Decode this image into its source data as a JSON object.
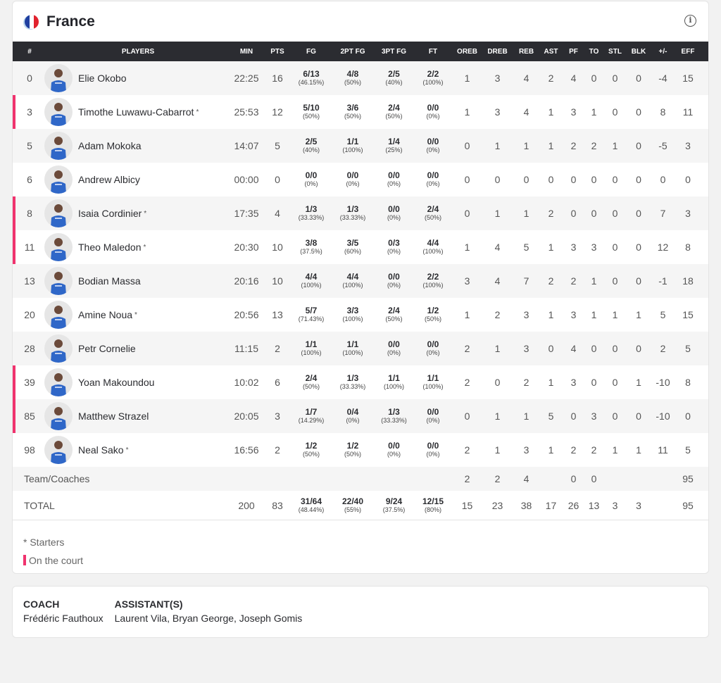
{
  "team": {
    "name": "France",
    "flag_colors": [
      "#1f3fa0",
      "#ffffff",
      "#e1222e"
    ]
  },
  "accent": "#f0336e",
  "columns": [
    "#",
    "PLAYERS",
    "MIN",
    "PTS",
    "FG",
    "2PT FG",
    "3PT FG",
    "FT",
    "OREB",
    "DREB",
    "REB",
    "AST",
    "PF",
    "TO",
    "STL",
    "BLK",
    "+/-",
    "EFF"
  ],
  "players": [
    {
      "num": "0",
      "name": "Elie Okobo",
      "starter": false,
      "on_court": false,
      "min": "22:25",
      "pts": "16",
      "fg": [
        "6/13",
        "(46.15%)"
      ],
      "fg2": [
        "4/8",
        "(50%)"
      ],
      "fg3": [
        "2/5",
        "(40%)"
      ],
      "ft": [
        "2/2",
        "(100%)"
      ],
      "oreb": "1",
      "dreb": "3",
      "reb": "4",
      "ast": "2",
      "pf": "4",
      "to": "0",
      "stl": "0",
      "blk": "0",
      "pm": "-4",
      "eff": "15"
    },
    {
      "num": "3",
      "name": "Timothe Luwawu-Cabarrot",
      "starter": true,
      "on_court": true,
      "min": "25:53",
      "pts": "12",
      "fg": [
        "5/10",
        "(50%)"
      ],
      "fg2": [
        "3/6",
        "(50%)"
      ],
      "fg3": [
        "2/4",
        "(50%)"
      ],
      "ft": [
        "0/0",
        "(0%)"
      ],
      "oreb": "1",
      "dreb": "3",
      "reb": "4",
      "ast": "1",
      "pf": "3",
      "to": "1",
      "stl": "0",
      "blk": "0",
      "pm": "8",
      "eff": "11"
    },
    {
      "num": "5",
      "name": "Adam Mokoka",
      "starter": false,
      "on_court": false,
      "min": "14:07",
      "pts": "5",
      "fg": [
        "2/5",
        "(40%)"
      ],
      "fg2": [
        "1/1",
        "(100%)"
      ],
      "fg3": [
        "1/4",
        "(25%)"
      ],
      "ft": [
        "0/0",
        "(0%)"
      ],
      "oreb": "0",
      "dreb": "1",
      "reb": "1",
      "ast": "1",
      "pf": "2",
      "to": "2",
      "stl": "1",
      "blk": "0",
      "pm": "-5",
      "eff": "3"
    },
    {
      "num": "6",
      "name": "Andrew Albicy",
      "starter": false,
      "on_court": false,
      "min": "00:00",
      "pts": "0",
      "fg": [
        "0/0",
        "(0%)"
      ],
      "fg2": [
        "0/0",
        "(0%)"
      ],
      "fg3": [
        "0/0",
        "(0%)"
      ],
      "ft": [
        "0/0",
        "(0%)"
      ],
      "oreb": "0",
      "dreb": "0",
      "reb": "0",
      "ast": "0",
      "pf": "0",
      "to": "0",
      "stl": "0",
      "blk": "0",
      "pm": "0",
      "eff": "0"
    },
    {
      "num": "8",
      "name": "Isaia Cordinier",
      "starter": true,
      "on_court": true,
      "min": "17:35",
      "pts": "4",
      "fg": [
        "1/3",
        "(33.33%)"
      ],
      "fg2": [
        "1/3",
        "(33.33%)"
      ],
      "fg3": [
        "0/0",
        "(0%)"
      ],
      "ft": [
        "2/4",
        "(50%)"
      ],
      "oreb": "0",
      "dreb": "1",
      "reb": "1",
      "ast": "2",
      "pf": "0",
      "to": "0",
      "stl": "0",
      "blk": "0",
      "pm": "7",
      "eff": "3"
    },
    {
      "num": "11",
      "name": "Theo Maledon",
      "starter": true,
      "on_court": true,
      "min": "20:30",
      "pts": "10",
      "fg": [
        "3/8",
        "(37.5%)"
      ],
      "fg2": [
        "3/5",
        "(60%)"
      ],
      "fg3": [
        "0/3",
        "(0%)"
      ],
      "ft": [
        "4/4",
        "(100%)"
      ],
      "oreb": "1",
      "dreb": "4",
      "reb": "5",
      "ast": "1",
      "pf": "3",
      "to": "3",
      "stl": "0",
      "blk": "0",
      "pm": "12",
      "eff": "8"
    },
    {
      "num": "13",
      "name": "Bodian Massa",
      "starter": false,
      "on_court": false,
      "min": "20:16",
      "pts": "10",
      "fg": [
        "4/4",
        "(100%)"
      ],
      "fg2": [
        "4/4",
        "(100%)"
      ],
      "fg3": [
        "0/0",
        "(0%)"
      ],
      "ft": [
        "2/2",
        "(100%)"
      ],
      "oreb": "3",
      "dreb": "4",
      "reb": "7",
      "ast": "2",
      "pf": "2",
      "to": "1",
      "stl": "0",
      "blk": "0",
      "pm": "-1",
      "eff": "18"
    },
    {
      "num": "20",
      "name": "Amine Noua",
      "starter": true,
      "on_court": false,
      "min": "20:56",
      "pts": "13",
      "fg": [
        "5/7",
        "(71.43%)"
      ],
      "fg2": [
        "3/3",
        "(100%)"
      ],
      "fg3": [
        "2/4",
        "(50%)"
      ],
      "ft": [
        "1/2",
        "(50%)"
      ],
      "oreb": "1",
      "dreb": "2",
      "reb": "3",
      "ast": "1",
      "pf": "3",
      "to": "1",
      "stl": "1",
      "blk": "1",
      "pm": "5",
      "eff": "15"
    },
    {
      "num": "28",
      "name": "Petr Cornelie",
      "starter": false,
      "on_court": false,
      "min": "11:15",
      "pts": "2",
      "fg": [
        "1/1",
        "(100%)"
      ],
      "fg2": [
        "1/1",
        "(100%)"
      ],
      "fg3": [
        "0/0",
        "(0%)"
      ],
      "ft": [
        "0/0",
        "(0%)"
      ],
      "oreb": "2",
      "dreb": "1",
      "reb": "3",
      "ast": "0",
      "pf": "4",
      "to": "0",
      "stl": "0",
      "blk": "0",
      "pm": "2",
      "eff": "5"
    },
    {
      "num": "39",
      "name": "Yoan Makoundou",
      "starter": false,
      "on_court": true,
      "min": "10:02",
      "pts": "6",
      "fg": [
        "2/4",
        "(50%)"
      ],
      "fg2": [
        "1/3",
        "(33.33%)"
      ],
      "fg3": [
        "1/1",
        "(100%)"
      ],
      "ft": [
        "1/1",
        "(100%)"
      ],
      "oreb": "2",
      "dreb": "0",
      "reb": "2",
      "ast": "1",
      "pf": "3",
      "to": "0",
      "stl": "0",
      "blk": "1",
      "pm": "-10",
      "eff": "8"
    },
    {
      "num": "85",
      "name": "Matthew Strazel",
      "starter": false,
      "on_court": true,
      "min": "20:05",
      "pts": "3",
      "fg": [
        "1/7",
        "(14.29%)"
      ],
      "fg2": [
        "0/4",
        "(0%)"
      ],
      "fg3": [
        "1/3",
        "(33.33%)"
      ],
      "ft": [
        "0/0",
        "(0%)"
      ],
      "oreb": "0",
      "dreb": "1",
      "reb": "1",
      "ast": "5",
      "pf": "0",
      "to": "3",
      "stl": "0",
      "blk": "0",
      "pm": "-10",
      "eff": "0"
    },
    {
      "num": "98",
      "name": "Neal Sako",
      "starter": true,
      "on_court": false,
      "min": "16:56",
      "pts": "2",
      "fg": [
        "1/2",
        "(50%)"
      ],
      "fg2": [
        "1/2",
        "(50%)"
      ],
      "fg3": [
        "0/0",
        "(0%)"
      ],
      "ft": [
        "0/0",
        "(0%)"
      ],
      "oreb": "2",
      "dreb": "1",
      "reb": "3",
      "ast": "1",
      "pf": "2",
      "to": "2",
      "stl": "1",
      "blk": "1",
      "pm": "11",
      "eff": "5"
    }
  ],
  "team_row": {
    "label": "Team/Coaches",
    "oreb": "2",
    "dreb": "2",
    "reb": "4",
    "ast": "",
    "pf": "0",
    "to": "0",
    "stl": "",
    "blk": "",
    "pm": "",
    "eff": "95"
  },
  "total_row": {
    "label": "TOTAL",
    "min": "200",
    "pts": "83",
    "fg": [
      "31/64",
      "(48.44%)"
    ],
    "fg2": [
      "22/40",
      "(55%)"
    ],
    "fg3": [
      "9/24",
      "(37.5%)"
    ],
    "ft": [
      "12/15",
      "(80%)"
    ],
    "oreb": "15",
    "dreb": "23",
    "reb": "38",
    "ast": "17",
    "pf": "26",
    "to": "13",
    "stl": "3",
    "blk": "3",
    "pm": "",
    "eff": "95"
  },
  "starter_mark": "*",
  "legend": {
    "starters": "* Starters",
    "on_court": "On the court"
  },
  "staff": {
    "coach_label": "COACH",
    "coach": "Frédéric Fauthoux",
    "assistants_label": "ASSISTANT(S)",
    "assistants": "Laurent Vila, Bryan George, Joseph Gomis"
  }
}
